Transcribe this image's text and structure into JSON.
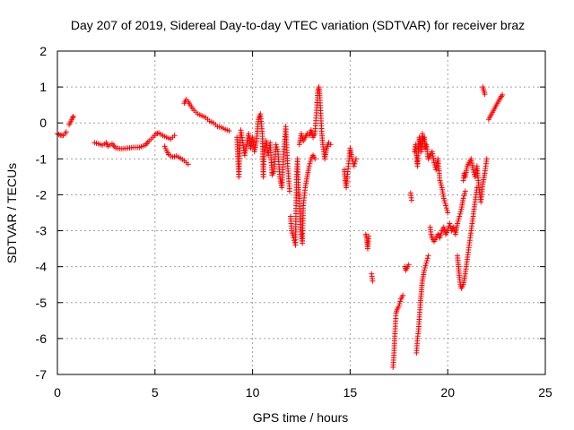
{
  "chart_data": {
    "type": "scatter",
    "title": "Day 207 of 2019, Sidereal Day-to-day VTEC variation (SDTVAR) for receiver braz",
    "xlabel": "GPS time / hours",
    "ylabel": "SDTVAR / TECUs",
    "xlim": [
      0,
      25
    ],
    "ylim": [
      -7,
      2
    ],
    "x_ticks": [
      0,
      5,
      10,
      15,
      20,
      25
    ],
    "y_ticks": [
      -7,
      -6,
      -5,
      -4,
      -3,
      -2,
      -1,
      0,
      1,
      2
    ],
    "x_tick_labels": [
      "0",
      "5",
      "10",
      "15",
      "20",
      "25"
    ],
    "y_tick_labels": [
      "-7",
      "-6",
      "-5",
      "-4",
      "-3",
      "-2",
      "-1",
      "0",
      "1",
      "2"
    ],
    "grid": true,
    "marker": "+",
    "color": "#ff0000",
    "series": [
      {
        "name": "SDTVAR",
        "segments": [
          [
            [
              0.0,
              -0.3
            ],
            [
              0.15,
              -0.34
            ],
            [
              0.3,
              -0.35
            ],
            [
              0.4,
              -0.3
            ],
            [
              0.45,
              -0.25
            ]
          ],
          [
            [
              0.6,
              -0.05
            ],
            [
              0.7,
              0.05
            ],
            [
              0.78,
              0.15
            ],
            [
              0.82,
              0.18
            ]
          ],
          [
            [
              1.9,
              -0.55
            ],
            [
              2.1,
              -0.58
            ],
            [
              2.3,
              -0.62
            ],
            [
              2.5,
              -0.55
            ],
            [
              2.6,
              -0.65
            ],
            [
              2.8,
              -0.58
            ],
            [
              3.0,
              -0.7
            ],
            [
              3.3,
              -0.72
            ],
            [
              3.6,
              -0.7
            ],
            [
              3.9,
              -0.68
            ],
            [
              4.2,
              -0.68
            ],
            [
              4.5,
              -0.62
            ],
            [
              4.7,
              -0.5
            ],
            [
              4.9,
              -0.4
            ],
            [
              5.05,
              -0.3
            ],
            [
              5.2,
              -0.28
            ],
            [
              5.4,
              -0.35
            ],
            [
              5.6,
              -0.4
            ],
            [
              5.8,
              -0.45
            ],
            [
              6.0,
              -0.35
            ]
          ],
          [
            [
              5.5,
              -0.65
            ],
            [
              5.6,
              -0.78
            ],
            [
              5.7,
              -0.88
            ],
            [
              5.9,
              -0.95
            ],
            [
              6.1,
              -0.92
            ],
            [
              6.3,
              -0.98
            ],
            [
              6.5,
              -1.05
            ],
            [
              6.7,
              -1.15
            ]
          ],
          [
            [
              6.5,
              0.55
            ],
            [
              6.6,
              0.65
            ],
            [
              6.7,
              0.6
            ],
            [
              6.8,
              0.5
            ],
            [
              7.0,
              0.35
            ],
            [
              7.2,
              0.25
            ],
            [
              7.4,
              0.2
            ],
            [
              7.6,
              0.15
            ],
            [
              7.8,
              0.05
            ],
            [
              8.0,
              0.0
            ],
            [
              8.2,
              -0.1
            ],
            [
              8.4,
              -0.12
            ],
            [
              8.6,
              -0.18
            ],
            [
              8.8,
              -0.22
            ]
          ],
          [
            [
              9.2,
              -0.4
            ],
            [
              9.25,
              -1.0
            ],
            [
              9.3,
              -1.5
            ],
            [
              9.35,
              -0.7
            ],
            [
              9.4,
              -0.2
            ],
            [
              9.5,
              -0.55
            ],
            [
              9.6,
              -0.9
            ],
            [
              9.7,
              -0.6
            ],
            [
              9.8,
              -0.3
            ],
            [
              9.9,
              -0.7
            ],
            [
              10.0,
              -0.4
            ],
            [
              10.1,
              -0.8
            ],
            [
              10.2,
              -0.5
            ],
            [
              10.3,
              0.1
            ],
            [
              10.4,
              0.25
            ],
            [
              10.5,
              -0.3
            ],
            [
              10.55,
              -1.5
            ],
            [
              10.6,
              -0.8
            ],
            [
              10.7,
              -0.5
            ],
            [
              10.8,
              -0.9
            ],
            [
              10.9,
              -0.55
            ],
            [
              11.0,
              -1.45
            ],
            [
              11.1,
              -1.35
            ],
            [
              11.2,
              -0.6
            ],
            [
              11.3,
              -0.8
            ],
            [
              11.4,
              -1.5
            ],
            [
              11.5,
              -1.8
            ],
            [
              11.6,
              -0.8
            ],
            [
              11.7,
              -0.1
            ],
            [
              11.8,
              -1.2
            ],
            [
              11.9,
              -1.9
            ]
          ],
          [
            [
              11.95,
              -2.6
            ],
            [
              12.0,
              -3.0
            ],
            [
              12.1,
              -3.2
            ],
            [
              12.2,
              -3.4
            ],
            [
              12.25,
              -1.5
            ],
            [
              12.3,
              -1.0
            ],
            [
              12.35,
              -1.8
            ],
            [
              12.4,
              -2.1
            ],
            [
              12.45,
              -2.9
            ],
            [
              12.5,
              -3.1
            ],
            [
              12.55,
              -3.35
            ],
            [
              12.6,
              -2.3
            ],
            [
              12.7,
              -1.8
            ],
            [
              12.8,
              -1.5
            ],
            [
              12.9,
              -1.2
            ],
            [
              13.0,
              -1.0
            ],
            [
              13.1,
              -0.9
            ],
            [
              13.2,
              -1.0
            ]
          ],
          [
            [
              12.4,
              -0.6
            ],
            [
              12.5,
              -0.3
            ],
            [
              12.6,
              -0.5
            ],
            [
              12.7,
              -0.4
            ],
            [
              12.8,
              -0.3
            ],
            [
              12.9,
              -0.35
            ],
            [
              13.0,
              -0.2
            ],
            [
              13.1,
              -0.4
            ],
            [
              13.2,
              -0.3
            ],
            [
              13.3,
              0.5
            ],
            [
              13.35,
              0.9
            ],
            [
              13.4,
              1.0
            ],
            [
              13.45,
              0.7
            ],
            [
              13.5,
              0.2
            ],
            [
              13.55,
              -0.3
            ],
            [
              13.6,
              -0.6
            ],
            [
              13.7,
              -1.0
            ],
            [
              13.8,
              -0.7
            ],
            [
              13.9,
              -0.55
            ],
            [
              14.0,
              -0.6
            ]
          ],
          [
            [
              14.7,
              -1.3
            ],
            [
              14.75,
              -1.6
            ],
            [
              14.8,
              -1.8
            ],
            [
              14.85,
              -1.5
            ],
            [
              15.0,
              -0.7
            ],
            [
              15.1,
              -1.0
            ],
            [
              15.2,
              -1.2
            ],
            [
              15.3,
              -1.0
            ]
          ],
          [
            [
              15.8,
              -3.1
            ],
            [
              15.85,
              -3.2
            ],
            [
              15.9,
              -3.5
            ],
            [
              15.95,
              -3.15
            ]
          ],
          [
            [
              16.1,
              -4.2
            ],
            [
              16.15,
              -4.4
            ]
          ],
          [
            [
              17.2,
              -6.8
            ],
            [
              17.25,
              -6.4
            ],
            [
              17.3,
              -5.8
            ],
            [
              17.35,
              -5.3
            ],
            [
              17.4,
              -5.2
            ],
            [
              17.5,
              -5.1
            ],
            [
              17.6,
              -4.9
            ],
            [
              17.7,
              -4.8
            ]
          ],
          [
            [
              17.8,
              -4.0
            ],
            [
              17.85,
              -4.1
            ],
            [
              17.9,
              -4.05
            ],
            [
              18.0,
              -3.95
            ]
          ],
          [
            [
              18.1,
              -1.95
            ],
            [
              18.15,
              -2.15
            ]
          ],
          [
            [
              18.3,
              -0.8
            ],
            [
              18.35,
              -0.6
            ],
            [
              18.4,
              -0.9
            ],
            [
              18.45,
              -1.2
            ],
            [
              18.5,
              -0.7
            ],
            [
              18.55,
              -0.4
            ],
            [
              18.6,
              -0.55
            ],
            [
              18.65,
              -0.8
            ],
            [
              18.7,
              -0.3
            ],
            [
              18.75,
              -0.5
            ],
            [
              18.8,
              -0.4
            ],
            [
              18.85,
              -0.7
            ],
            [
              18.9,
              -0.6
            ],
            [
              18.95,
              -0.8
            ],
            [
              19.0,
              -1.0
            ],
            [
              19.1,
              -0.9
            ],
            [
              19.2,
              -0.8
            ],
            [
              19.3,
              -1.1
            ],
            [
              19.4,
              -1.3
            ],
            [
              19.5,
              -1.0
            ],
            [
              19.6,
              -1.6
            ],
            [
              19.7,
              -1.8
            ],
            [
              19.8,
              -2.1
            ],
            [
              19.9,
              -2.3
            ],
            [
              20.0,
              -2.5
            ]
          ],
          [
            [
              18.4,
              -6.4
            ],
            [
              18.45,
              -6.0
            ],
            [
              18.5,
              -5.8
            ],
            [
              18.55,
              -5.4
            ],
            [
              18.6,
              -5.0
            ],
            [
              18.65,
              -4.7
            ],
            [
              18.7,
              -4.4
            ],
            [
              18.8,
              -4.1
            ],
            [
              18.9,
              -3.9
            ],
            [
              19.0,
              -3.7
            ]
          ],
          [
            [
              19.1,
              -2.9
            ],
            [
              19.15,
              -3.1
            ],
            [
              19.2,
              -3.2
            ],
            [
              19.3,
              -3.3
            ],
            [
              19.4,
              -3.2
            ],
            [
              19.5,
              -3.1
            ],
            [
              19.6,
              -3.2
            ],
            [
              19.7,
              -3.0
            ],
            [
              19.8,
              -2.9
            ],
            [
              19.9,
              -3.1
            ],
            [
              20.0,
              -3.0
            ],
            [
              20.1,
              -2.8
            ],
            [
              20.2,
              -3.0
            ],
            [
              20.3,
              -2.9
            ],
            [
              20.4,
              -3.1
            ],
            [
              20.5,
              -2.8
            ],
            [
              20.6,
              -2.6
            ],
            [
              20.7,
              -2.4
            ],
            [
              20.8,
              -2.1
            ],
            [
              20.9,
              -1.9
            ]
          ],
          [
            [
              20.5,
              -3.7
            ],
            [
              20.55,
              -4.0
            ],
            [
              20.6,
              -4.3
            ],
            [
              20.65,
              -4.5
            ],
            [
              20.7,
              -4.6
            ],
            [
              20.8,
              -4.5
            ],
            [
              20.9,
              -4.2
            ],
            [
              21.0,
              -3.8
            ],
            [
              21.1,
              -3.4
            ],
            [
              21.2,
              -3.0
            ],
            [
              21.3,
              -2.6
            ],
            [
              21.4,
              -2.2
            ],
            [
              21.5,
              -1.8
            ]
          ],
          [
            [
              20.8,
              -1.6
            ],
            [
              20.85,
              -1.4
            ],
            [
              20.9,
              -1.5
            ],
            [
              21.0,
              -1.2
            ],
            [
              21.1,
              -1.1
            ],
            [
              21.2,
              -1.0
            ],
            [
              21.3,
              -1.3
            ],
            [
              21.4,
              -1.5
            ],
            [
              21.5,
              -1.2
            ],
            [
              21.6,
              -1.8
            ],
            [
              21.7,
              -2.2
            ],
            [
              21.8,
              -1.7
            ],
            [
              21.9,
              -1.4
            ],
            [
              22.0,
              -1.0
            ]
          ],
          [
            [
              21.8,
              1.0
            ],
            [
              21.85,
              0.9
            ],
            [
              21.9,
              0.8
            ]
          ],
          [
            [
              22.1,
              0.1
            ],
            [
              22.2,
              0.2
            ],
            [
              22.3,
              0.3
            ],
            [
              22.4,
              0.4
            ],
            [
              22.5,
              0.5
            ],
            [
              22.6,
              0.6
            ],
            [
              22.7,
              0.7
            ],
            [
              22.8,
              0.78
            ]
          ]
        ]
      }
    ]
  }
}
